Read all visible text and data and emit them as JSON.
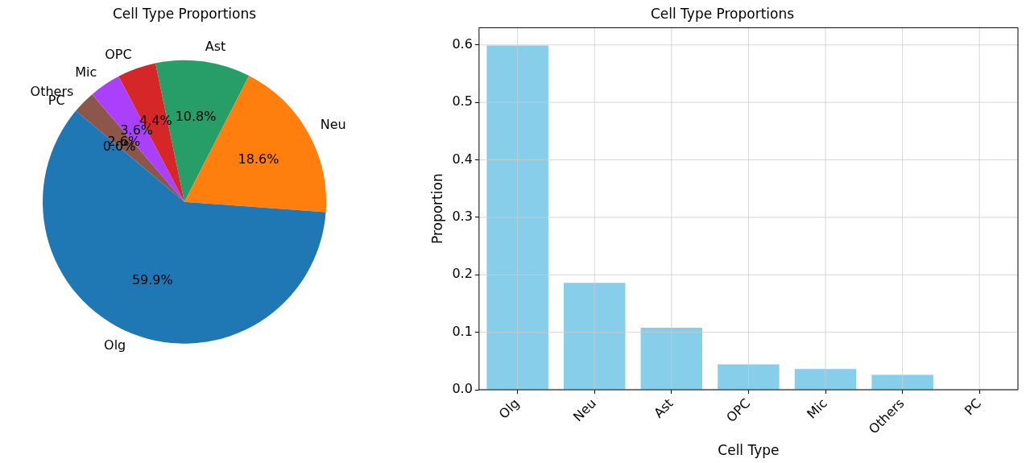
{
  "chart_data": [
    {
      "type": "pie",
      "title": "Cell Type Proportions",
      "categories": [
        "Olg",
        "Neu",
        "Ast",
        "OPC",
        "Mic",
        "Others",
        "PC"
      ],
      "values": [
        59.9,
        18.6,
        10.8,
        4.4,
        3.6,
        2.6,
        0.0
      ],
      "colors": [
        "#1f77b4",
        "#ff7f0e",
        "#279e68",
        "#d62728",
        "#aa40fc",
        "#8c564b",
        "#e377c2"
      ],
      "value_labels": [
        "59.9%",
        "18.6%",
        "10.8%",
        "4.4%",
        "3.6%",
        "2.6%",
        "0.0%"
      ],
      "legend": false
    },
    {
      "type": "bar",
      "title": "Cell Type Proportions",
      "xlabel": "Cell Type",
      "ylabel": "Proportion",
      "categories": [
        "Olg",
        "Neu",
        "Ast",
        "OPC",
        "Mic",
        "Others",
        "PC"
      ],
      "values": [
        0.599,
        0.186,
        0.108,
        0.044,
        0.036,
        0.026,
        0.0
      ],
      "color": "#87ceeb",
      "ylim": [
        0,
        0.63
      ],
      "yticks": [
        {
          "value": 0,
          "label": "0.0"
        },
        0.1,
        0.2,
        0.3,
        0.4,
        0.5,
        0.6
      ],
      "grid": true,
      "legend": false
    }
  ]
}
